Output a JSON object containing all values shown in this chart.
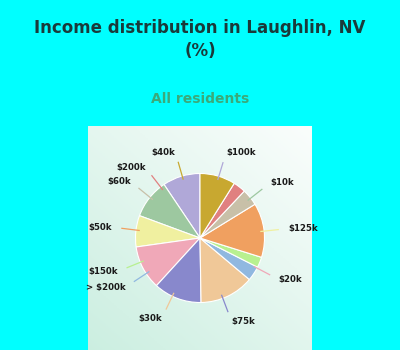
{
  "title": "Income distribution in Laughlin, NV\n(%)",
  "subtitle": "All residents",
  "title_color": "#1a3a3a",
  "subtitle_color": "#3aaa7a",
  "background_top": "#00ffff",
  "background_chart_tl": "#e0f5f0",
  "background_chart_br": "#d0eee0",
  "labels": [
    "$100k",
    "$10k",
    "$125k",
    "$20k",
    "$75k",
    "$30k",
    "> $200k",
    "$150k",
    "$50k",
    "$60k",
    "$200k",
    "$40k"
  ],
  "values": [
    9.0,
    9.5,
    7.5,
    10.5,
    11.5,
    13.0,
    3.5,
    2.5,
    13.0,
    4.0,
    3.0,
    8.5
  ],
  "colors": [
    "#b0a8d8",
    "#9dc8a0",
    "#f0f0a0",
    "#f0a8b8",
    "#8888cc",
    "#f0c898",
    "#90b8e0",
    "#b8f090",
    "#f0a060",
    "#c8c0a8",
    "#e08080",
    "#c8a830"
  ],
  "line_colors": [
    "#b0a8d8",
    "#9dc8a0",
    "#f0f0a0",
    "#f0a8b8",
    "#8888cc",
    "#f0c898",
    "#90b8e0",
    "#b8f090",
    "#f0a060",
    "#c8c0a8",
    "#e08080",
    "#c8a830"
  ],
  "startangle": 90,
  "figsize": [
    4.0,
    3.5
  ],
  "dpi": 100
}
